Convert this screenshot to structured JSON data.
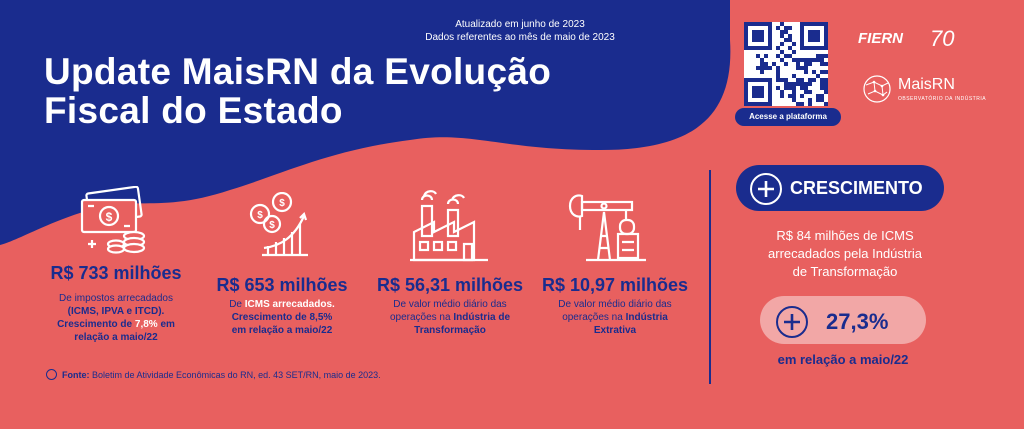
{
  "header": {
    "updated_line1": "Atualizado em junho de 2023",
    "updated_line2": "Dados referentes ao mês de maio de 2023",
    "title_line1": "Update MaisRN da Evolução",
    "title_line2": "Fiscal do Estado"
  },
  "qr": {
    "caption": "Acesse a plataforma"
  },
  "logos": {
    "fiern": "FIERN",
    "seventy": "70",
    "maisrn": "MaisRN",
    "maisrn_sub": "OBSERVATÓRIO DA INDÚSTRIA"
  },
  "stats": [
    {
      "icon": "money-bills-icon",
      "value": "R$ 733 milhões",
      "desc_line1": "De impostos arrecadados",
      "desc_line2": "(ICMS, IPVA e ITCD).",
      "desc_line3a": "Crescimento de ",
      "desc_line3b": "7,8%",
      "desc_line3c": " em",
      "desc_line4": "relação a maio/22"
    },
    {
      "icon": "coins-growth-icon",
      "value": "R$ 653 milhões",
      "desc_line1a": "De ",
      "desc_line1b": "ICMS arrecadados.",
      "desc_line2": "Crescimento de 8,5%",
      "desc_line3": "em relação a maio/22"
    },
    {
      "icon": "factory-icon",
      "value": "R$ 56,31 milhões",
      "desc_line1": "De valor médio diário das",
      "desc_line2a": "operações na ",
      "desc_line2b": "Indústria de",
      "desc_line3": "Transformação"
    },
    {
      "icon": "oil-pump-icon",
      "value": "R$ 10,97 milhões",
      "desc_line1": "De valor médio diário das",
      "desc_line2a": "operações na ",
      "desc_line2b": "Indústria",
      "desc_line3": "Extrativa"
    }
  ],
  "crescimento": {
    "label": "CRESCIMENTO",
    "text_line1": "R$ 84 milhões de ICMS",
    "text_line2": "arrecadados pela Indústria",
    "text_line3": "de Transformação",
    "percent": "27,3%",
    "caption": "em relação a maio/22"
  },
  "source": {
    "label": "Fonte:",
    "text": " Boletim de Atividade Econômicas do RN, ed. 43 SET/RN, maio de 2023."
  },
  "colors": {
    "navy": "#1a2c8e",
    "coral": "#e8605f",
    "pink": "#f2a7a6",
    "white": "#ffffff"
  }
}
